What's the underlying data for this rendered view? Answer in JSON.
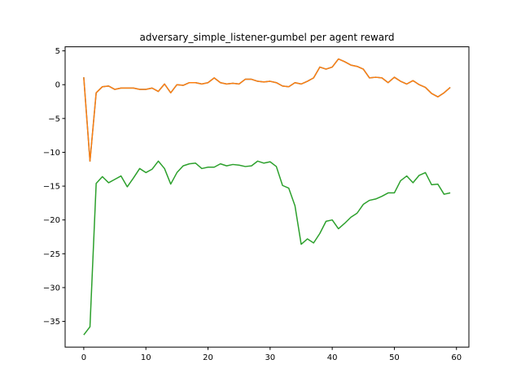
{
  "chart_data": {
    "type": "line",
    "title": "adversary_simple_listener-gumbel per agent reward",
    "xlabel": "",
    "ylabel": "",
    "xlim": [
      -3,
      62
    ],
    "ylim": [
      -38.8,
      5.6
    ],
    "xticks": [
      0,
      10,
      20,
      30,
      40,
      50,
      60
    ],
    "yticks": [
      5,
      0,
      -5,
      -10,
      -15,
      -20,
      -25,
      -30,
      -35
    ],
    "grid": false,
    "x": [
      0,
      1,
      2,
      3,
      4,
      5,
      6,
      7,
      8,
      9,
      10,
      11,
      12,
      13,
      14,
      15,
      16,
      17,
      18,
      19,
      20,
      21,
      22,
      23,
      24,
      25,
      26,
      27,
      28,
      29,
      30,
      31,
      32,
      33,
      34,
      35,
      36,
      37,
      38,
      39,
      40,
      41,
      42,
      43,
      44,
      45,
      46,
      47,
      48,
      49,
      50,
      51,
      52,
      53,
      54,
      55,
      56,
      57,
      58,
      59
    ],
    "series": [
      {
        "color": "#1f77b4",
        "values": [
          1.1,
          -11.3,
          -1.2,
          -0.3,
          -0.2,
          -0.7,
          -0.5,
          -0.5,
          -0.5,
          -0.7,
          -0.7,
          -0.5,
          -1.0,
          0.1,
          -1.2,
          0.0,
          -0.1,
          0.3,
          0.3,
          0.1,
          0.3,
          1.0,
          0.3,
          0.1,
          0.2,
          0.1,
          0.8,
          0.8,
          0.5,
          0.4,
          0.5,
          0.3,
          -0.2,
          -0.3,
          0.3,
          0.1,
          0.5,
          1.0,
          2.6,
          2.3,
          2.6,
          3.8,
          3.4,
          2.9,
          2.7,
          2.3,
          1.0,
          1.1,
          1.0,
          0.3,
          1.1,
          0.5,
          0.1,
          0.6,
          0.0,
          -0.4,
          -1.3,
          -1.8,
          -1.2,
          -0.4
        ]
      },
      {
        "color": "#ff7f0e",
        "values": [
          1.1,
          -11.3,
          -1.2,
          -0.3,
          -0.2,
          -0.7,
          -0.5,
          -0.5,
          -0.5,
          -0.7,
          -0.7,
          -0.5,
          -1.0,
          0.1,
          -1.2,
          0.0,
          -0.1,
          0.3,
          0.3,
          0.1,
          0.3,
          1.0,
          0.3,
          0.1,
          0.2,
          0.1,
          0.8,
          0.8,
          0.5,
          0.4,
          0.5,
          0.3,
          -0.2,
          -0.3,
          0.3,
          0.1,
          0.5,
          1.0,
          2.6,
          2.3,
          2.6,
          3.8,
          3.4,
          2.9,
          2.7,
          2.3,
          1.0,
          1.1,
          1.0,
          0.3,
          1.1,
          0.5,
          0.1,
          0.6,
          0.0,
          -0.4,
          -1.3,
          -1.8,
          -1.2,
          -0.4
        ]
      },
      {
        "color": "#2ca02c",
        "values": [
          -37.0,
          -35.8,
          -14.6,
          -13.6,
          -14.5,
          -14.0,
          -13.5,
          -15.1,
          -13.8,
          -12.4,
          -13.0,
          -12.5,
          -11.3,
          -12.4,
          -14.7,
          -13.0,
          -12.0,
          -11.7,
          -11.6,
          -12.4,
          -12.2,
          -12.2,
          -11.7,
          -12.0,
          -11.8,
          -11.9,
          -12.1,
          -12.0,
          -11.3,
          -11.6,
          -11.4,
          -12.1,
          -14.9,
          -15.3,
          -17.9,
          -23.6,
          -22.8,
          -23.4,
          -22.0,
          -20.2,
          -20.0,
          -21.3,
          -20.5,
          -19.6,
          -19.0,
          -17.7,
          -17.1,
          -16.9,
          -16.5,
          -16.0,
          -16.0,
          -14.2,
          -13.5,
          -14.5,
          -13.4,
          -13.0,
          -14.8,
          -14.7,
          -16.2,
          -16.0
        ]
      }
    ]
  }
}
